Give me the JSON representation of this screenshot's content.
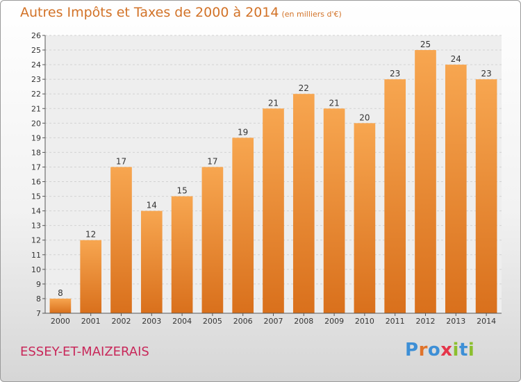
{
  "title": "Autres Impôts et Taxes de 2000 à 2014",
  "subtitle": "(en milliers d'€)",
  "commune": "ESSEY-ET-MAIZERAIS",
  "logo": {
    "letters": [
      "P",
      "r",
      "o",
      "x",
      "i",
      "t",
      "i"
    ],
    "colors": [
      "#3d8fd6",
      "#e0732a",
      "#3d8fd6",
      "#e5354a",
      "#8cbf2f",
      "#3d8fd6",
      "#8cbf2f"
    ]
  },
  "colors": {
    "bar_top": "#f7a650",
    "bar_bottom": "#d9701c",
    "title": "#d27227",
    "commune": "#c8285a"
  },
  "chart_data": {
    "type": "bar",
    "categories": [
      "2000",
      "2001",
      "2002",
      "2003",
      "2004",
      "2005",
      "2006",
      "2007",
      "2008",
      "2009",
      "2010",
      "2011",
      "2012",
      "2013",
      "2014"
    ],
    "values": [
      8,
      12,
      17,
      14,
      15,
      17,
      19,
      21,
      22,
      21,
      20,
      23,
      25,
      24,
      23
    ],
    "ylim": [
      7,
      26
    ],
    "yticks": [
      7,
      8,
      9,
      10,
      11,
      12,
      13,
      14,
      15,
      16,
      17,
      18,
      19,
      20,
      21,
      22,
      23,
      24,
      25,
      26
    ],
    "grid": true
  }
}
